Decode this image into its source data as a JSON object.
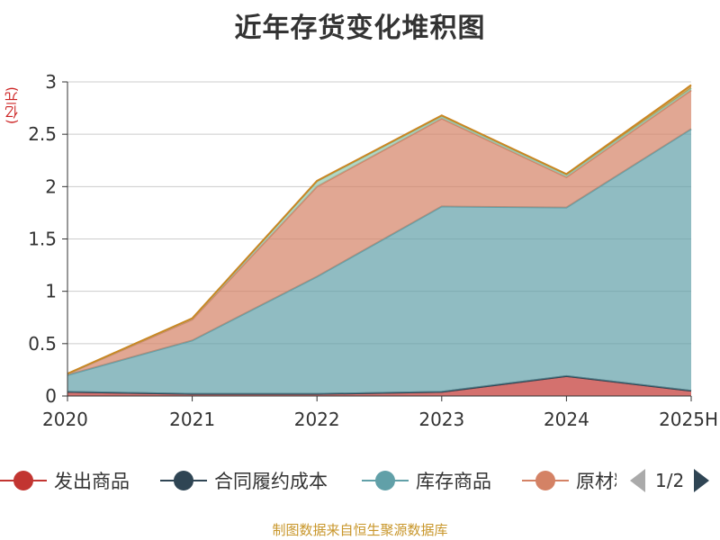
{
  "chart_data": {
    "type": "area",
    "stacked": true,
    "title": "近年存货变化堆积图",
    "unit_label": "(亿元)",
    "categories": [
      "2020",
      "2021",
      "2022",
      "2023",
      "2024",
      "2025H"
    ],
    "ylim": [
      0,
      3
    ],
    "yticks": [
      "0",
      "0.5",
      "1",
      "1.5",
      "2",
      "2.5",
      "3"
    ],
    "grid": true,
    "series": [
      {
        "name": "发出商品",
        "color": "#c23531",
        "values": [
          0.04,
          0.02,
          0.02,
          0.04,
          0.19,
          0.05
        ]
      },
      {
        "name": "合同履约成本",
        "color": "#2f4554",
        "values": [
          0,
          0,
          0,
          0,
          0,
          0
        ]
      },
      {
        "name": "库存商品",
        "color": "#61a0a8",
        "values": [
          0.16,
          0.51,
          1.12,
          1.77,
          1.61,
          2.5
        ]
      },
      {
        "name": "原材料",
        "color": "#d48265",
        "values": [
          0.01,
          0.2,
          0.86,
          0.84,
          0.29,
          0.37
        ]
      },
      {
        "name": "",
        "color": "#91c7ae",
        "values": [
          0.002,
          0.01,
          0.05,
          0.02,
          0.02,
          0.02
        ]
      },
      {
        "name": "",
        "color": "#ca8622",
        "values": [
          0.002,
          0.002,
          0.005,
          0.01,
          0.01,
          0.03
        ]
      }
    ]
  },
  "legend": {
    "items": [
      {
        "label": "发出商品",
        "color": "#c23531"
      },
      {
        "label": "合同履约成本",
        "color": "#2f4554"
      },
      {
        "label": "库存商品",
        "color": "#61a0a8"
      },
      {
        "label": "原材料",
        "color": "#d48265"
      }
    ],
    "page": "1/2",
    "prev_icon": "triangle-left-icon",
    "next_icon": "triangle-right-icon"
  },
  "source": "制图数据来自恒生聚源数据库"
}
